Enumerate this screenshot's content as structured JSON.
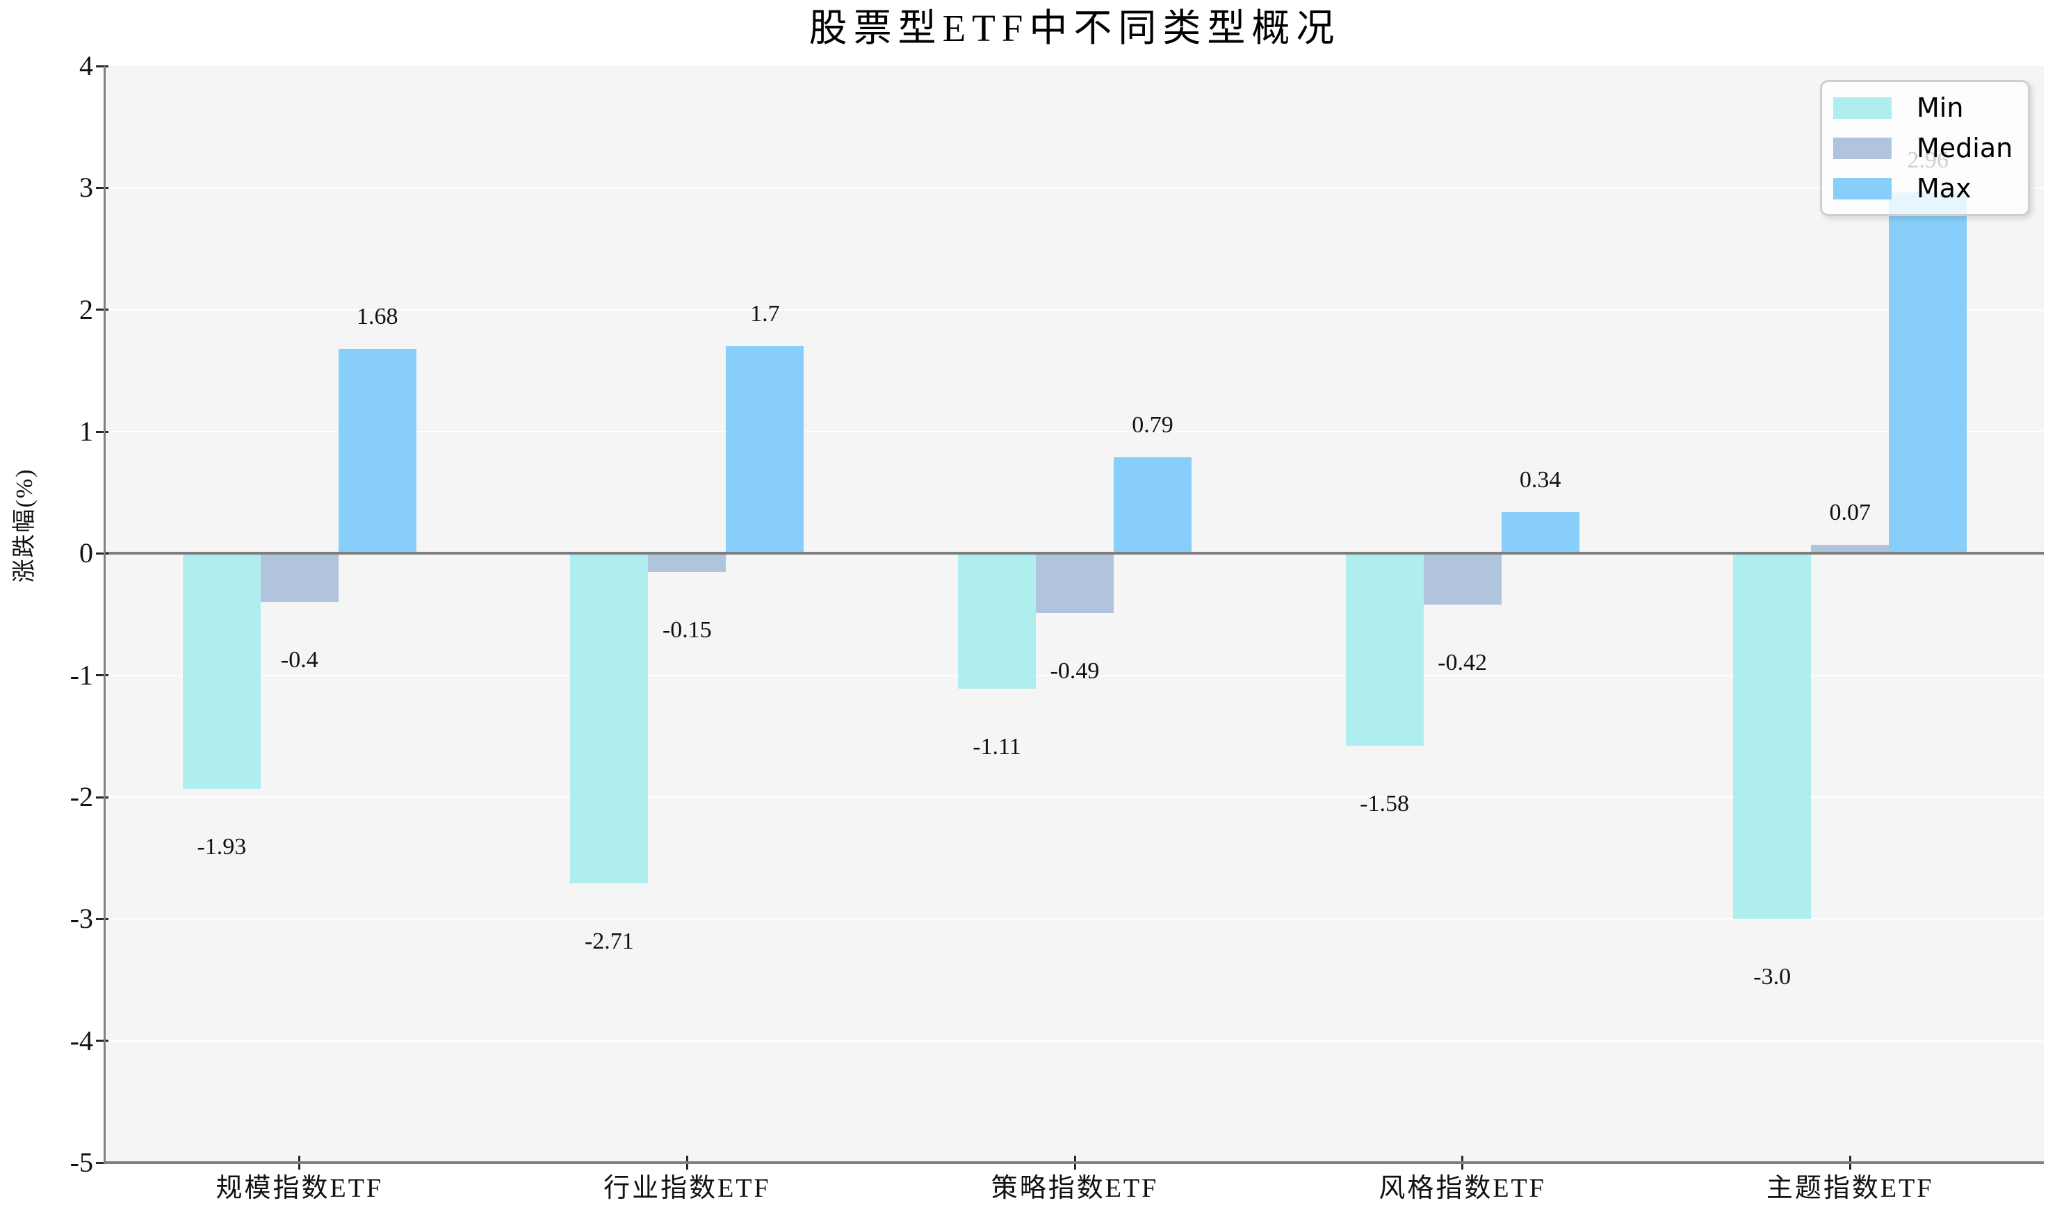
{
  "title": "股票型ETF中不同类型概况",
  "chart_data": {
    "type": "bar",
    "title": "股票型ETF中不同类型概况",
    "xlabel": "",
    "ylabel": "涨跌幅(%)",
    "categories": [
      "规模指数ETF",
      "行业指数ETF",
      "策略指数ETF",
      "风格指数ETF",
      "主题指数ETF"
    ],
    "series": [
      {
        "name": "Min",
        "color": "#AFEEEE",
        "values": [
          -1.93,
          -2.71,
          -1.11,
          -1.58,
          -3.0
        ],
        "labels": [
          "-1.93",
          "-2.71",
          "-1.11",
          "-1.58",
          "-3.0"
        ]
      },
      {
        "name": "Median",
        "color": "#B0C4DE",
        "values": [
          -0.4,
          -0.15,
          -0.49,
          -0.42,
          0.07
        ],
        "labels": [
          "-0.4",
          "-0.15",
          "-0.49",
          "-0.42",
          "0.07"
        ]
      },
      {
        "name": "Max",
        "color": "#87CEFA",
        "values": [
          1.68,
          1.7,
          0.79,
          0.34,
          2.96
        ],
        "labels": [
          "1.68",
          "1.7",
          "0.79",
          "0.34",
          "2.96"
        ]
      }
    ],
    "ylim": [
      -5,
      4
    ],
    "yticks": [
      4,
      3,
      2,
      1,
      0,
      -1,
      -2,
      -3,
      -4,
      -5
    ],
    "grid": true,
    "legend_position": "upper right",
    "colors": {
      "plot_background": "#f5f5f5",
      "figure_background": "#ffffff",
      "gridline": "#ffffff",
      "zero_line": "#7d7d7d",
      "spine": "#808080",
      "text": "#111111"
    }
  },
  "legend": {
    "items": [
      {
        "label": "Min"
      },
      {
        "label": "Median"
      },
      {
        "label": "Max"
      }
    ]
  }
}
